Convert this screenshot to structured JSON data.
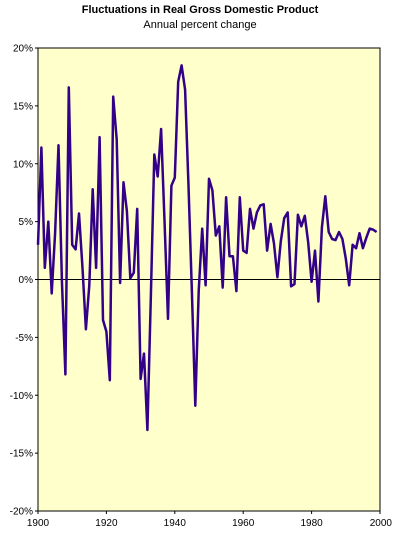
{
  "chart_data": {
    "type": "line",
    "title": "Fluctuations in Real Gross Domestic Product",
    "subtitle": "Annual percent change",
    "xlabel": "",
    "ylabel": "",
    "xlim": [
      1900,
      2000
    ],
    "ylim": [
      -20,
      20
    ],
    "x_ticks": [
      1900,
      1920,
      1940,
      1960,
      1980,
      2000
    ],
    "y_ticks": [
      20,
      15,
      10,
      5,
      0,
      -5,
      -10,
      -15,
      -20
    ],
    "y_tick_labels": [
      "20%",
      "15%",
      "10%",
      "5%",
      "0%",
      "-5%",
      "-10%",
      "-15%",
      "-20%"
    ],
    "grid": false,
    "zero_line": true,
    "colors": {
      "plot_background": "#FFFFCC",
      "series": "#330088",
      "axis": "#000000"
    },
    "series": [
      {
        "name": "",
        "x": [
          1900,
          1901,
          1902,
          1903,
          1904,
          1905,
          1906,
          1907,
          1908,
          1909,
          1910,
          1911,
          1912,
          1913,
          1914,
          1915,
          1916,
          1917,
          1918,
          1919,
          1920,
          1921,
          1922,
          1923,
          1924,
          1925,
          1926,
          1927,
          1928,
          1929,
          1930,
          1931,
          1932,
          1933,
          1934,
          1935,
          1936,
          1937,
          1938,
          1939,
          1940,
          1941,
          1942,
          1943,
          1944,
          1945,
          1946,
          1947,
          1948,
          1949,
          1950,
          1951,
          1952,
          1953,
          1954,
          1955,
          1956,
          1957,
          1958,
          1959,
          1960,
          1961,
          1962,
          1963,
          1964,
          1965,
          1966,
          1967,
          1968,
          1969,
          1970,
          1971,
          1972,
          1973,
          1974,
          1975,
          1976,
          1977,
          1978,
          1979,
          1980,
          1981,
          1982,
          1983,
          1984,
          1985,
          1986,
          1987,
          1988,
          1989,
          1990,
          1991,
          1992,
          1993,
          1994,
          1995,
          1996,
          1997,
          1998,
          1999
        ],
        "values": [
          3.0,
          11.4,
          1.0,
          5.0,
          -1.2,
          4.0,
          11.6,
          -0.1,
          -8.2,
          16.6,
          3.0,
          2.6,
          5.7,
          1.0,
          -4.3,
          -0.5,
          7.8,
          1.0,
          12.3,
          -3.5,
          -4.5,
          -8.7,
          15.8,
          12.1,
          -0.3,
          8.4,
          5.9,
          0.1,
          0.6,
          6.1,
          -8.6,
          -6.4,
          -13.0,
          -1.3,
          10.8,
          8.9,
          13.0,
          5.1,
          -3.4,
          8.1,
          8.8,
          17.1,
          18.5,
          16.4,
          8.1,
          -1.1,
          -10.9,
          -1.0,
          4.4,
          -0.5,
          8.7,
          7.7,
          3.8,
          4.6,
          -0.7,
          7.1,
          2.0,
          2.0,
          -1.0,
          7.1,
          2.5,
          2.3,
          6.1,
          4.4,
          5.8,
          6.4,
          6.5,
          2.5,
          4.8,
          3.1,
          0.2,
          3.3,
          5.3,
          5.8,
          -0.6,
          -0.4,
          5.6,
          4.6,
          5.5,
          3.2,
          -0.2,
          2.5,
          -1.9,
          4.5,
          7.2,
          4.1,
          3.5,
          3.4,
          4.1,
          3.5,
          1.8,
          -0.5,
          3.0,
          2.7,
          4.0,
          2.7,
          3.6,
          4.4,
          4.3,
          4.1
        ]
      }
    ]
  }
}
